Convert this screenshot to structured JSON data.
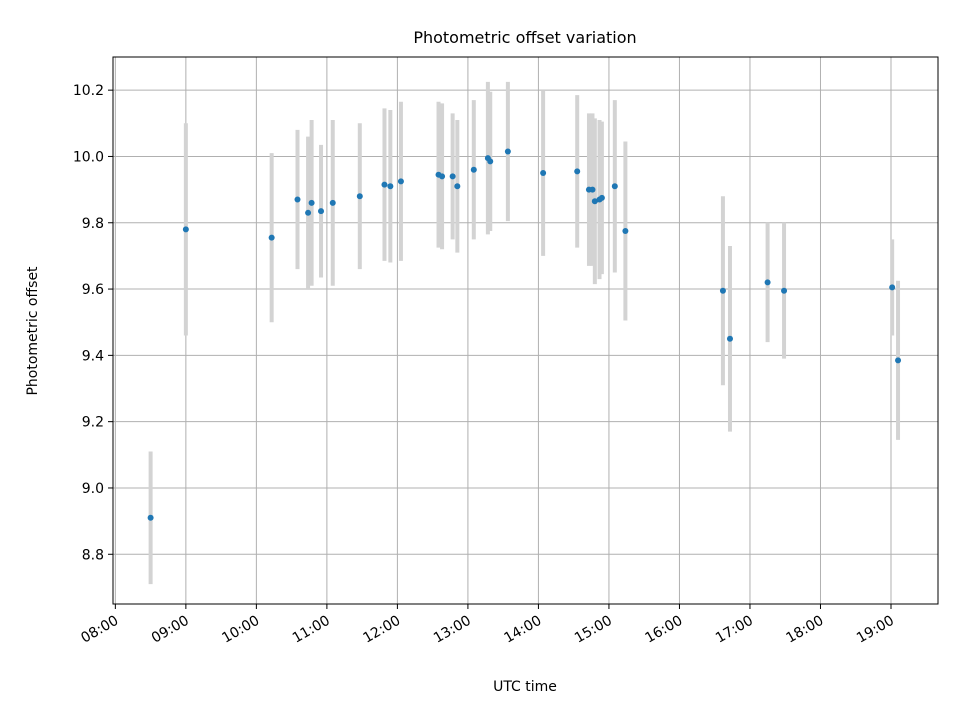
{
  "chart_data": {
    "type": "scatter",
    "title": "Photometric offset variation",
    "xlabel": "UTC time",
    "ylabel": "Photometric offset",
    "xlim": [
      "07:58",
      "19:40"
    ],
    "ylim": [
      8.65,
      10.3
    ],
    "x_ticks": [
      "08:00",
      "09:00",
      "10:00",
      "11:00",
      "12:00",
      "13:00",
      "14:00",
      "15:00",
      "16:00",
      "17:00",
      "18:00",
      "19:00"
    ],
    "y_ticks": [
      "8.8",
      "9.0",
      "9.2",
      "9.4",
      "9.6",
      "9.8",
      "10.0",
      "10.2"
    ],
    "grid": true,
    "colors": {
      "points": "#1f77b4",
      "error_bars": "#d3d3d3",
      "grid": "#b0b0b0"
    },
    "series": [
      {
        "points": [
          {
            "x": "08:30",
            "y": 8.91,
            "yerr": 0.2
          },
          {
            "x": "09:00",
            "y": 9.78,
            "yerr": 0.32
          },
          {
            "x": "10:13",
            "y": 9.755,
            "yerr": 0.255
          },
          {
            "x": "10:35",
            "y": 9.87,
            "yerr": 0.21
          },
          {
            "x": "10:44",
            "y": 9.83,
            "yerr": 0.23
          },
          {
            "x": "10:47",
            "y": 9.86,
            "yerr": 0.25
          },
          {
            "x": "10:55",
            "y": 9.835,
            "yerr": 0.2
          },
          {
            "x": "11:05",
            "y": 9.86,
            "yerr": 0.25
          },
          {
            "x": "11:28",
            "y": 9.88,
            "yerr": 0.22
          },
          {
            "x": "11:49",
            "y": 9.915,
            "yerr": 0.23
          },
          {
            "x": "11:54",
            "y": 9.91,
            "yerr": 0.23
          },
          {
            "x": "12:03",
            "y": 9.925,
            "yerr": 0.24
          },
          {
            "x": "12:35",
            "y": 9.945,
            "yerr": 0.22
          },
          {
            "x": "12:38",
            "y": 9.94,
            "yerr": 0.22
          },
          {
            "x": "12:47",
            "y": 9.94,
            "yerr": 0.19
          },
          {
            "x": "12:51",
            "y": 9.91,
            "yerr": 0.2
          },
          {
            "x": "13:05",
            "y": 9.96,
            "yerr": 0.21
          },
          {
            "x": "13:17",
            "y": 9.995,
            "yerr": 0.23
          },
          {
            "x": "13:19",
            "y": 9.985,
            "yerr": 0.21
          },
          {
            "x": "13:34",
            "y": 10.015,
            "yerr": 0.21
          },
          {
            "x": "14:04",
            "y": 9.95,
            "yerr": 0.25
          },
          {
            "x": "14:33",
            "y": 9.955,
            "yerr": 0.23
          },
          {
            "x": "14:43",
            "y": 9.9,
            "yerr": 0.23
          },
          {
            "x": "14:46",
            "y": 9.9,
            "yerr": 0.23
          },
          {
            "x": "14:48",
            "y": 9.865,
            "yerr": 0.25
          },
          {
            "x": "14:52",
            "y": 9.87,
            "yerr": 0.24
          },
          {
            "x": "14:54",
            "y": 9.875,
            "yerr": 0.23
          },
          {
            "x": "15:05",
            "y": 9.91,
            "yerr": 0.26
          },
          {
            "x": "15:14",
            "y": 9.775,
            "yerr": 0.27
          },
          {
            "x": "16:37",
            "y": 9.595,
            "yerr": 0.285
          },
          {
            "x": "16:43",
            "y": 9.45,
            "yerr": 0.28
          },
          {
            "x": "17:15",
            "y": 9.62,
            "yerr": 0.18
          },
          {
            "x": "17:29",
            "y": 9.595,
            "yerr": 0.205
          },
          {
            "x": "19:01",
            "y": 9.605,
            "yerr": 0.145
          },
          {
            "x": "19:06",
            "y": 9.385,
            "yerr": 0.24
          }
        ]
      }
    ]
  }
}
